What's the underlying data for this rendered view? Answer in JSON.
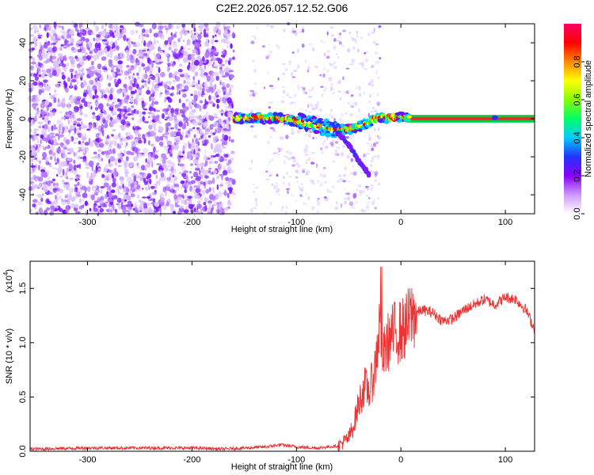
{
  "chart_data": [
    {
      "type": "heatmap",
      "title": "C2E2.2026.057.12.52.G06",
      "xlabel": "Height of straight line (km)",
      "ylabel": "Frequency (Hz)",
      "xlim": [
        -355,
        128
      ],
      "ylim": [
        -50,
        50
      ],
      "xticks": [
        -300,
        -200,
        -100,
        0,
        100
      ],
      "yticks": [
        -40,
        -20,
        0,
        20,
        40
      ],
      "grid": false,
      "colorbar": {
        "label": "Normalized spectral amplitude",
        "range": [
          0,
          1
        ],
        "ticks": [
          0.0,
          0.2,
          0.4,
          0.6,
          0.8
        ],
        "tick_labels": [
          "0.0",
          "0.2",
          "0.4",
          "0.6",
          "0.8"
        ],
        "colors": [
          "#ffffff",
          "#cc99ff",
          "#8800ff",
          "#2233ff",
          "#00ccff",
          "#00ff66",
          "#88ff00",
          "#ffff00",
          "#ff8800",
          "#ff0000",
          "#ff0066"
        ]
      },
      "features": {
        "noise_region_x": [
          -355,
          -160
        ],
        "sparse_noise_x": [
          -145,
          -20
        ],
        "main_tone": {
          "x": [
            -160,
            -140,
            -120,
            -100,
            -80,
            -60,
            -45,
            -30,
            -20,
            -10,
            0,
            10,
            128
          ],
          "y": [
            0,
            0.5,
            0.5,
            -1,
            -4,
            -6,
            -5,
            -2,
            1,
            0.5,
            1,
            0,
            0
          ]
        },
        "steady_line_x": [
          5,
          128
        ],
        "descending_branch": {
          "x": [
            -60,
            -52,
            -45,
            -38,
            -30
          ],
          "y": [
            -8,
            -12,
            -18,
            -24,
            -30
          ]
        }
      }
    },
    {
      "type": "line",
      "xlabel": "Height of straight line (km)",
      "ylabel": "SNR (10 * v/v)",
      "scale_label": "(x10",
      "scale_exponent": "4",
      "xlim": [
        -355,
        128
      ],
      "ylim": [
        0,
        1.75
      ],
      "xticks": [
        -300,
        -200,
        -100,
        0,
        100
      ],
      "yticks": [
        0.0,
        0.5,
        1.0,
        1.5
      ],
      "ytick_labels": [
        "0.0",
        "0.5",
        "1.0",
        "1.5"
      ],
      "grid": false,
      "series": [
        {
          "color": "#ee3333",
          "x": [
            -355,
            -300,
            -250,
            -200,
            -170,
            -150,
            -130,
            -115,
            -100,
            -80,
            -60,
            -50,
            -45,
            -40,
            -35,
            -30,
            -25,
            -20,
            -18,
            -15,
            -10,
            -5,
            0,
            5,
            10,
            20,
            30,
            40,
            50,
            60,
            70,
            80,
            90,
            100,
            110,
            120,
            128
          ],
          "y": [
            0.02,
            0.03,
            0.03,
            0.03,
            0.02,
            0.03,
            0.04,
            0.06,
            0.04,
            0.03,
            0.05,
            0.12,
            0.25,
            0.45,
            0.6,
            0.55,
            0.75,
            1.2,
            0.8,
            0.95,
            1.05,
            1.1,
            1.1,
            1.15,
            1.25,
            1.3,
            1.28,
            1.2,
            1.22,
            1.3,
            1.35,
            1.4,
            1.35,
            1.42,
            1.4,
            1.3,
            1.12
          ]
        }
      ]
    }
  ]
}
